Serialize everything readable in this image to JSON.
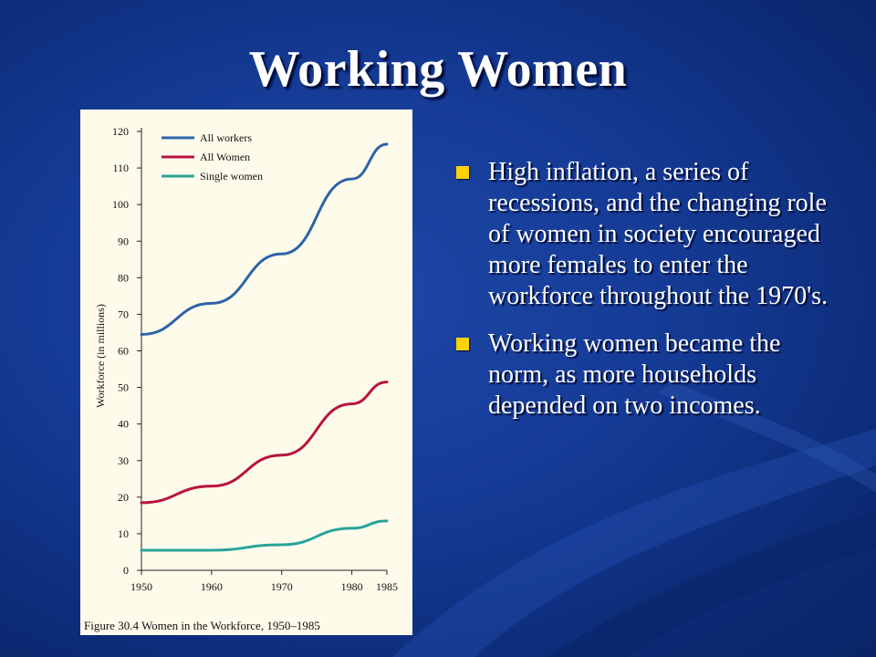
{
  "slide": {
    "title": "Working Women",
    "bullets": [
      "High inflation, a series of recessions, and the changing role of women in society encouraged more females to enter the workforce throughout the 1970's.",
      "Working women became the norm, as more households depended on two incomes."
    ],
    "colors": {
      "bullet": "#ffd200",
      "text": "#ffffff",
      "background": "#143a94"
    }
  },
  "chart_data": {
    "type": "line",
    "caption": "Figure 30.4  Women in the Workforce, 1950–1985",
    "ylabel": "Workforce (in millions)",
    "xlabel": "",
    "x": [
      1950,
      1960,
      1970,
      1980,
      1985
    ],
    "x_ticks": [
      "1950",
      "1960",
      "1970",
      "1980",
      "1985"
    ],
    "y_ticks": [
      "0",
      "10",
      "20",
      "30",
      "40",
      "50",
      "60",
      "70",
      "80",
      "90",
      "100",
      "110",
      "120"
    ],
    "ylim": [
      0,
      120
    ],
    "xlim": [
      1950,
      1985
    ],
    "legend_position": "top-left",
    "grid": false,
    "series": [
      {
        "name": "All workers",
        "color": "#2e63a8",
        "values": [
          64.5,
          73,
          86.5,
          107,
          116.5
        ]
      },
      {
        "name": "All Women",
        "color": "#b8143c",
        "values": [
          18.5,
          23,
          31.5,
          45.5,
          51.5
        ]
      },
      {
        "name": "Single women",
        "color": "#2aa39a",
        "values": [
          5.5,
          5.5,
          7,
          11.5,
          13.5
        ]
      }
    ]
  }
}
